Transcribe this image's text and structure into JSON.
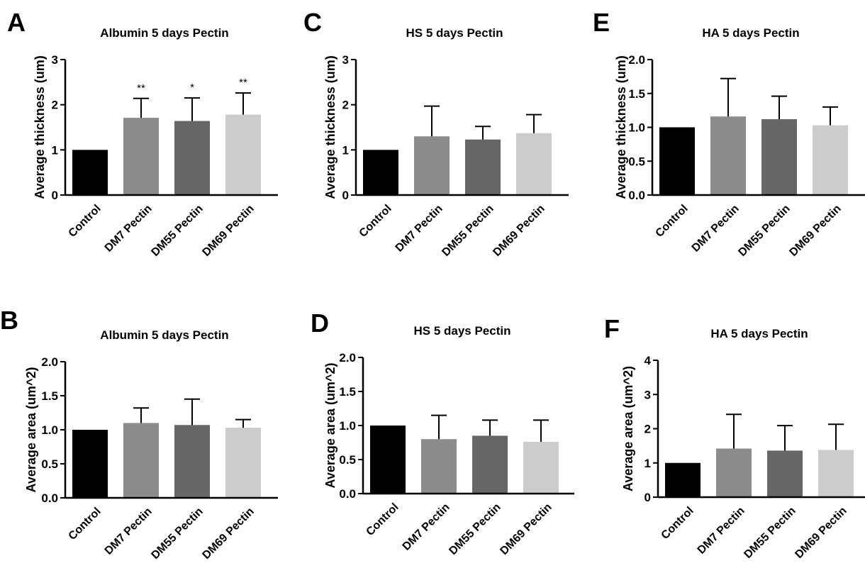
{
  "chart_data": [
    {
      "type": "bar",
      "panel_letter": "A",
      "title": "Albumin 5 days Pectin",
      "ylabel": "Average thickness (um)",
      "ylim": [
        0,
        3
      ],
      "yticks": [
        "0",
        "1",
        "2",
        "3"
      ],
      "categories": [
        "Control",
        "DM7 Pectin",
        "DM55 Pectin",
        "DM69 Pectin"
      ],
      "values": [
        1.0,
        1.71,
        1.64,
        1.78
      ],
      "errors": [
        0.0,
        0.43,
        0.51,
        0.48
      ],
      "annotations": [
        "",
        "**",
        "*",
        "**"
      ],
      "colors": [
        "#000000",
        "#8c8c8c",
        "#666666",
        "#cccccc"
      ]
    },
    {
      "type": "bar",
      "panel_letter": "C",
      "title": "HS 5 days Pectin",
      "ylabel": "Average thickness (um)",
      "ylim": [
        0,
        3
      ],
      "yticks": [
        "0",
        "1",
        "2",
        "3"
      ],
      "categories": [
        "Control",
        "DM7 Pectin",
        "DM55 Pectin",
        "DM69 Pectin"
      ],
      "values": [
        1.0,
        1.3,
        1.23,
        1.37
      ],
      "errors": [
        0.0,
        0.67,
        0.29,
        0.41
      ],
      "annotations": [
        "",
        "",
        "",
        ""
      ],
      "colors": [
        "#000000",
        "#8c8c8c",
        "#666666",
        "#cccccc"
      ]
    },
    {
      "type": "bar",
      "panel_letter": "E",
      "title": "HA 5 days Pectin",
      "ylabel": "Average thickness (um)",
      "ylim": [
        0,
        2
      ],
      "yticks": [
        "0.0",
        "0.5",
        "1.0",
        "1.5",
        "2.0"
      ],
      "categories": [
        "Control",
        "DM7 Pectin",
        "DM55 Pectin",
        "DM69 Pectin"
      ],
      "values": [
        1.0,
        1.16,
        1.12,
        1.03
      ],
      "errors": [
        0.0,
        0.56,
        0.34,
        0.27
      ],
      "annotations": [
        "",
        "",
        "",
        ""
      ],
      "colors": [
        "#000000",
        "#8c8c8c",
        "#666666",
        "#cccccc"
      ]
    },
    {
      "type": "bar",
      "panel_letter": "B",
      "title": "Albumin 5 days Pectin",
      "ylabel": "Average area (um^2)",
      "ylim": [
        0,
        2
      ],
      "yticks": [
        "0.0",
        "0.5",
        "1.0",
        "1.5",
        "2.0"
      ],
      "categories": [
        "Control",
        "DM7 Pectin",
        "DM55 Pectin",
        "DM69 Pectin"
      ],
      "values": [
        1.0,
        1.1,
        1.07,
        1.03
      ],
      "errors": [
        0.0,
        0.22,
        0.38,
        0.12
      ],
      "annotations": [
        "",
        "",
        "",
        ""
      ],
      "colors": [
        "#000000",
        "#8c8c8c",
        "#666666",
        "#cccccc"
      ]
    },
    {
      "type": "bar",
      "panel_letter": "D",
      "title": "HS 5 days Pectin",
      "ylabel": "Average area (um^2)",
      "ylim": [
        0,
        2
      ],
      "yticks": [
        "0.0",
        "0.5",
        "1.0",
        "1.5",
        "2.0"
      ],
      "categories": [
        "Control",
        "DM7 Pectin",
        "DM55 Pectin",
        "DM69 Pectin"
      ],
      "values": [
        1.0,
        0.8,
        0.85,
        0.76
      ],
      "errors": [
        0.0,
        0.35,
        0.23,
        0.32
      ],
      "annotations": [
        "",
        "",
        "",
        ""
      ],
      "colors": [
        "#000000",
        "#8c8c8c",
        "#666666",
        "#cccccc"
      ]
    },
    {
      "type": "bar",
      "panel_letter": "F",
      "title": "HA 5 days Pectin",
      "ylabel": "Average area (um^2)",
      "ylim": [
        0,
        4
      ],
      "yticks": [
        "0",
        "1",
        "2",
        "3",
        "4"
      ],
      "categories": [
        "Control",
        "DM7 Pectin",
        "DM55 Pectin",
        "DM69 Pectin"
      ],
      "values": [
        1.0,
        1.42,
        1.36,
        1.38
      ],
      "errors": [
        0.0,
        1.0,
        0.73,
        0.75
      ],
      "annotations": [
        "",
        "",
        "",
        ""
      ],
      "colors": [
        "#000000",
        "#8c8c8c",
        "#666666",
        "#cccccc"
      ]
    }
  ]
}
